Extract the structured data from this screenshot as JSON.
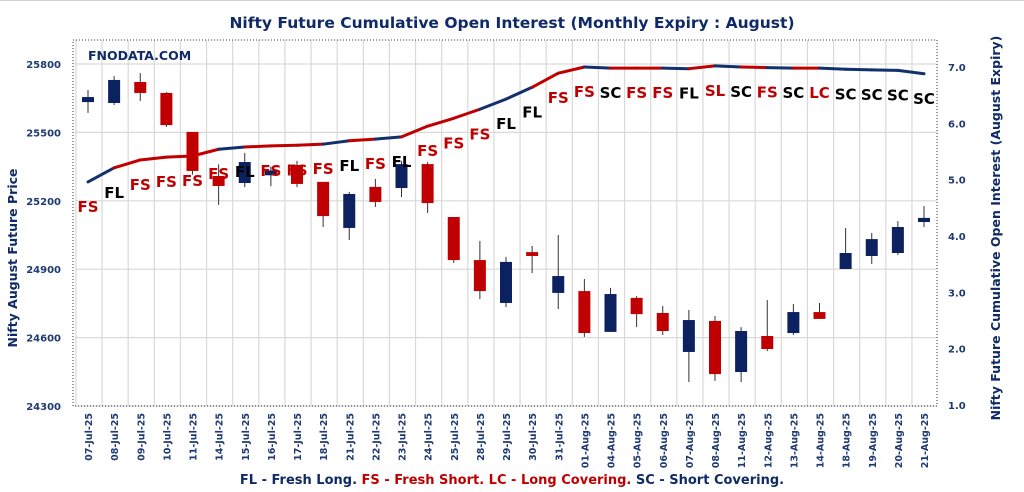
{
  "chart_data": {
    "type": "candlestick+line",
    "title": "Nifty Future Cumulative Open Interest (Monthly Expiry : August)",
    "watermark": "FNODATA.COM",
    "ylabel_left": "Nifty August Future Price",
    "ylabel_right": "Nifty Future Cumulative Open Interest (August Expiry)",
    "ylim_left": [
      24300,
      25800
    ],
    "yticks_left": [
      "25800",
      "25500",
      "25200",
      "24900",
      "24600",
      "24300"
    ],
    "ylim_right": [
      1.0,
      7.0
    ],
    "yticks_right": [
      "7.0",
      "6.0",
      "5.0",
      "4.0",
      "3.0",
      "2.0",
      "1.0"
    ],
    "grid": true,
    "categories": [
      "07-Jul-25",
      "08-Jul-25",
      "09-Jul-25",
      "10-Jul-25",
      "11-Jul-25",
      "14-Jul-25",
      "15-Jul-25",
      "16-Jul-25",
      "17-Jul-25",
      "18-Jul-25",
      "21-Jul-25",
      "22-Jul-25",
      "23-Jul-25",
      "24-Jul-25",
      "25-Jul-25",
      "28-Jul-25",
      "29-Jul-25",
      "30-Jul-25",
      "31-Jul-25",
      "01-Aug-25",
      "04-Aug-25",
      "05-Aug-25",
      "06-Aug-25",
      "07-Aug-25",
      "08-Aug-25",
      "11-Aug-25",
      "12-Aug-25",
      "13-Aug-25",
      "14-Aug-25",
      "18-Aug-25",
      "19-Aug-25",
      "20-Aug-25",
      "21-Aug-25"
    ],
    "ohlc": [
      [
        25633,
        25686,
        25585,
        25655
      ],
      [
        25629,
        25747,
        25620,
        25730
      ],
      [
        25721,
        25760,
        25638,
        25673
      ],
      [
        25673,
        25677,
        25524,
        25532
      ],
      [
        25502,
        25502,
        25315,
        25331
      ],
      [
        25309,
        25360,
        25182,
        25265
      ],
      [
        25278,
        25410,
        25260,
        25370
      ],
      [
        25312,
        25350,
        25264,
        25333
      ],
      [
        25357,
        25375,
        25260,
        25274
      ],
      [
        25283,
        25283,
        25085,
        25133
      ],
      [
        25081,
        25239,
        25028,
        25230
      ],
      [
        25261,
        25296,
        25173,
        25195
      ],
      [
        25256,
        25375,
        25216,
        25361
      ],
      [
        25361,
        25370,
        25147,
        25190
      ],
      [
        25129,
        25129,
        24927,
        24940
      ],
      [
        24940,
        25024,
        24769,
        24804
      ],
      [
        24752,
        24954,
        24734,
        24932
      ],
      [
        24975,
        25002,
        24883,
        24958
      ],
      [
        24796,
        25050,
        24725,
        24870
      ],
      [
        24804,
        24857,
        24603,
        24620
      ],
      [
        24625,
        24818,
        24625,
        24791
      ],
      [
        24774,
        24782,
        24646,
        24703
      ],
      [
        24708,
        24739,
        24611,
        24629
      ],
      [
        24537,
        24721,
        24405,
        24677
      ],
      [
        24673,
        24695,
        24410,
        24440
      ],
      [
        24449,
        24646,
        24405,
        24629
      ],
      [
        24607,
        24765,
        24541,
        24550
      ],
      [
        24620,
        24747,
        24611,
        24712
      ],
      [
        24712,
        24752,
        24682,
        24682
      ],
      [
        24901,
        25081,
        24901,
        24971
      ],
      [
        24958,
        25059,
        24923,
        25032
      ],
      [
        24971,
        25111,
        24962,
        25085
      ],
      [
        25107,
        25177,
        25085,
        25125
      ]
    ],
    "oi_series": [
      4.96,
      5.21,
      5.35,
      5.4,
      5.42,
      5.54,
      5.58,
      5.6,
      5.61,
      5.63,
      5.69,
      5.72,
      5.76,
      5.95,
      6.09,
      6.25,
      6.43,
      6.64,
      6.89,
      7.0,
      6.98,
      6.98,
      6.98,
      6.97,
      7.02,
      7.0,
      6.99,
      6.98,
      6.98,
      6.96,
      6.95,
      6.94,
      6.88
    ],
    "activity_labels": [
      "FS",
      "FL",
      "FS",
      "FS",
      "FS",
      "FS",
      "FL",
      "FS",
      "FS",
      "FS",
      "FL",
      "FS",
      "FL",
      "FS",
      "FS",
      "FS",
      "FL",
      "FL",
      "FS",
      "FS",
      "SC",
      "FS",
      "FS",
      "FL",
      "SL",
      "SC",
      "FS",
      "SC",
      "LC",
      "SC",
      "SC",
      "SC",
      "SC"
    ],
    "colors": {
      "up": "#0b2160",
      "down": "#c00000",
      "label_red": "#c00000",
      "label_black": "#000000",
      "line_red": "#c00000",
      "line_blue": "#12306e"
    },
    "legend": [
      {
        "text": "FL - Fresh Long.",
        "color": "#0f2a66"
      },
      {
        "text": "FS - Fresh Short. LC - Long Covering.",
        "color": "#c00000"
      },
      {
        "text": "SC - Short Covering.",
        "color": "#0f2a66"
      }
    ]
  }
}
